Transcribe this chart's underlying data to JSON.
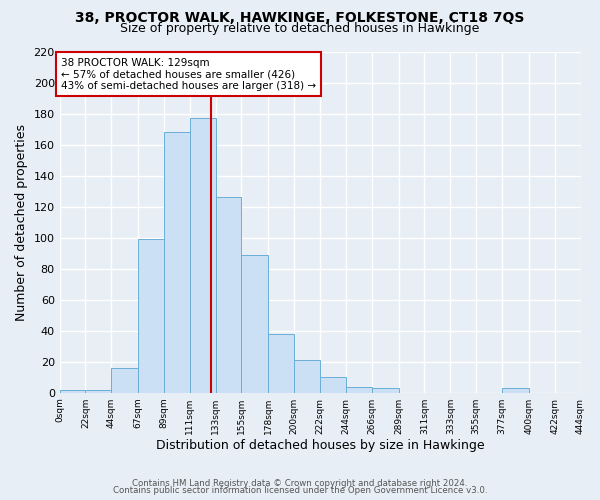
{
  "title1": "38, PROCTOR WALK, HAWKINGE, FOLKESTONE, CT18 7QS",
  "title2": "Size of property relative to detached houses in Hawkinge",
  "xlabel": "Distribution of detached houses by size in Hawkinge",
  "ylabel": "Number of detached properties",
  "bin_edges": [
    0,
    22,
    44,
    67,
    89,
    111,
    133,
    155,
    178,
    200,
    222,
    244,
    266,
    289,
    311,
    333,
    355,
    377,
    400,
    422,
    444
  ],
  "bar_heights": [
    2,
    2,
    16,
    99,
    168,
    177,
    126,
    89,
    38,
    21,
    10,
    4,
    3,
    0,
    0,
    0,
    0,
    3,
    0,
    0
  ],
  "bar_color": "#cce0f5",
  "bar_edge_color": "#6aaed6",
  "vline_x": 129,
  "vline_color": "#cc0000",
  "annotation_title": "38 PROCTOR WALK: 129sqm",
  "annotation_line1": "← 57% of detached houses are smaller (426)",
  "annotation_line2": "43% of semi-detached houses are larger (318) →",
  "annotation_box_color": "#ffffff",
  "annotation_box_edge": "#cc0000",
  "ylim": [
    0,
    220
  ],
  "yticks": [
    0,
    20,
    40,
    60,
    80,
    100,
    120,
    140,
    160,
    180,
    200,
    220
  ],
  "footer1": "Contains HM Land Registry data © Crown copyright and database right 2024.",
  "footer2": "Contains public sector information licensed under the Open Government Licence v3.0.",
  "bg_color": "#e8eef5",
  "grid_color": "#ffffff"
}
